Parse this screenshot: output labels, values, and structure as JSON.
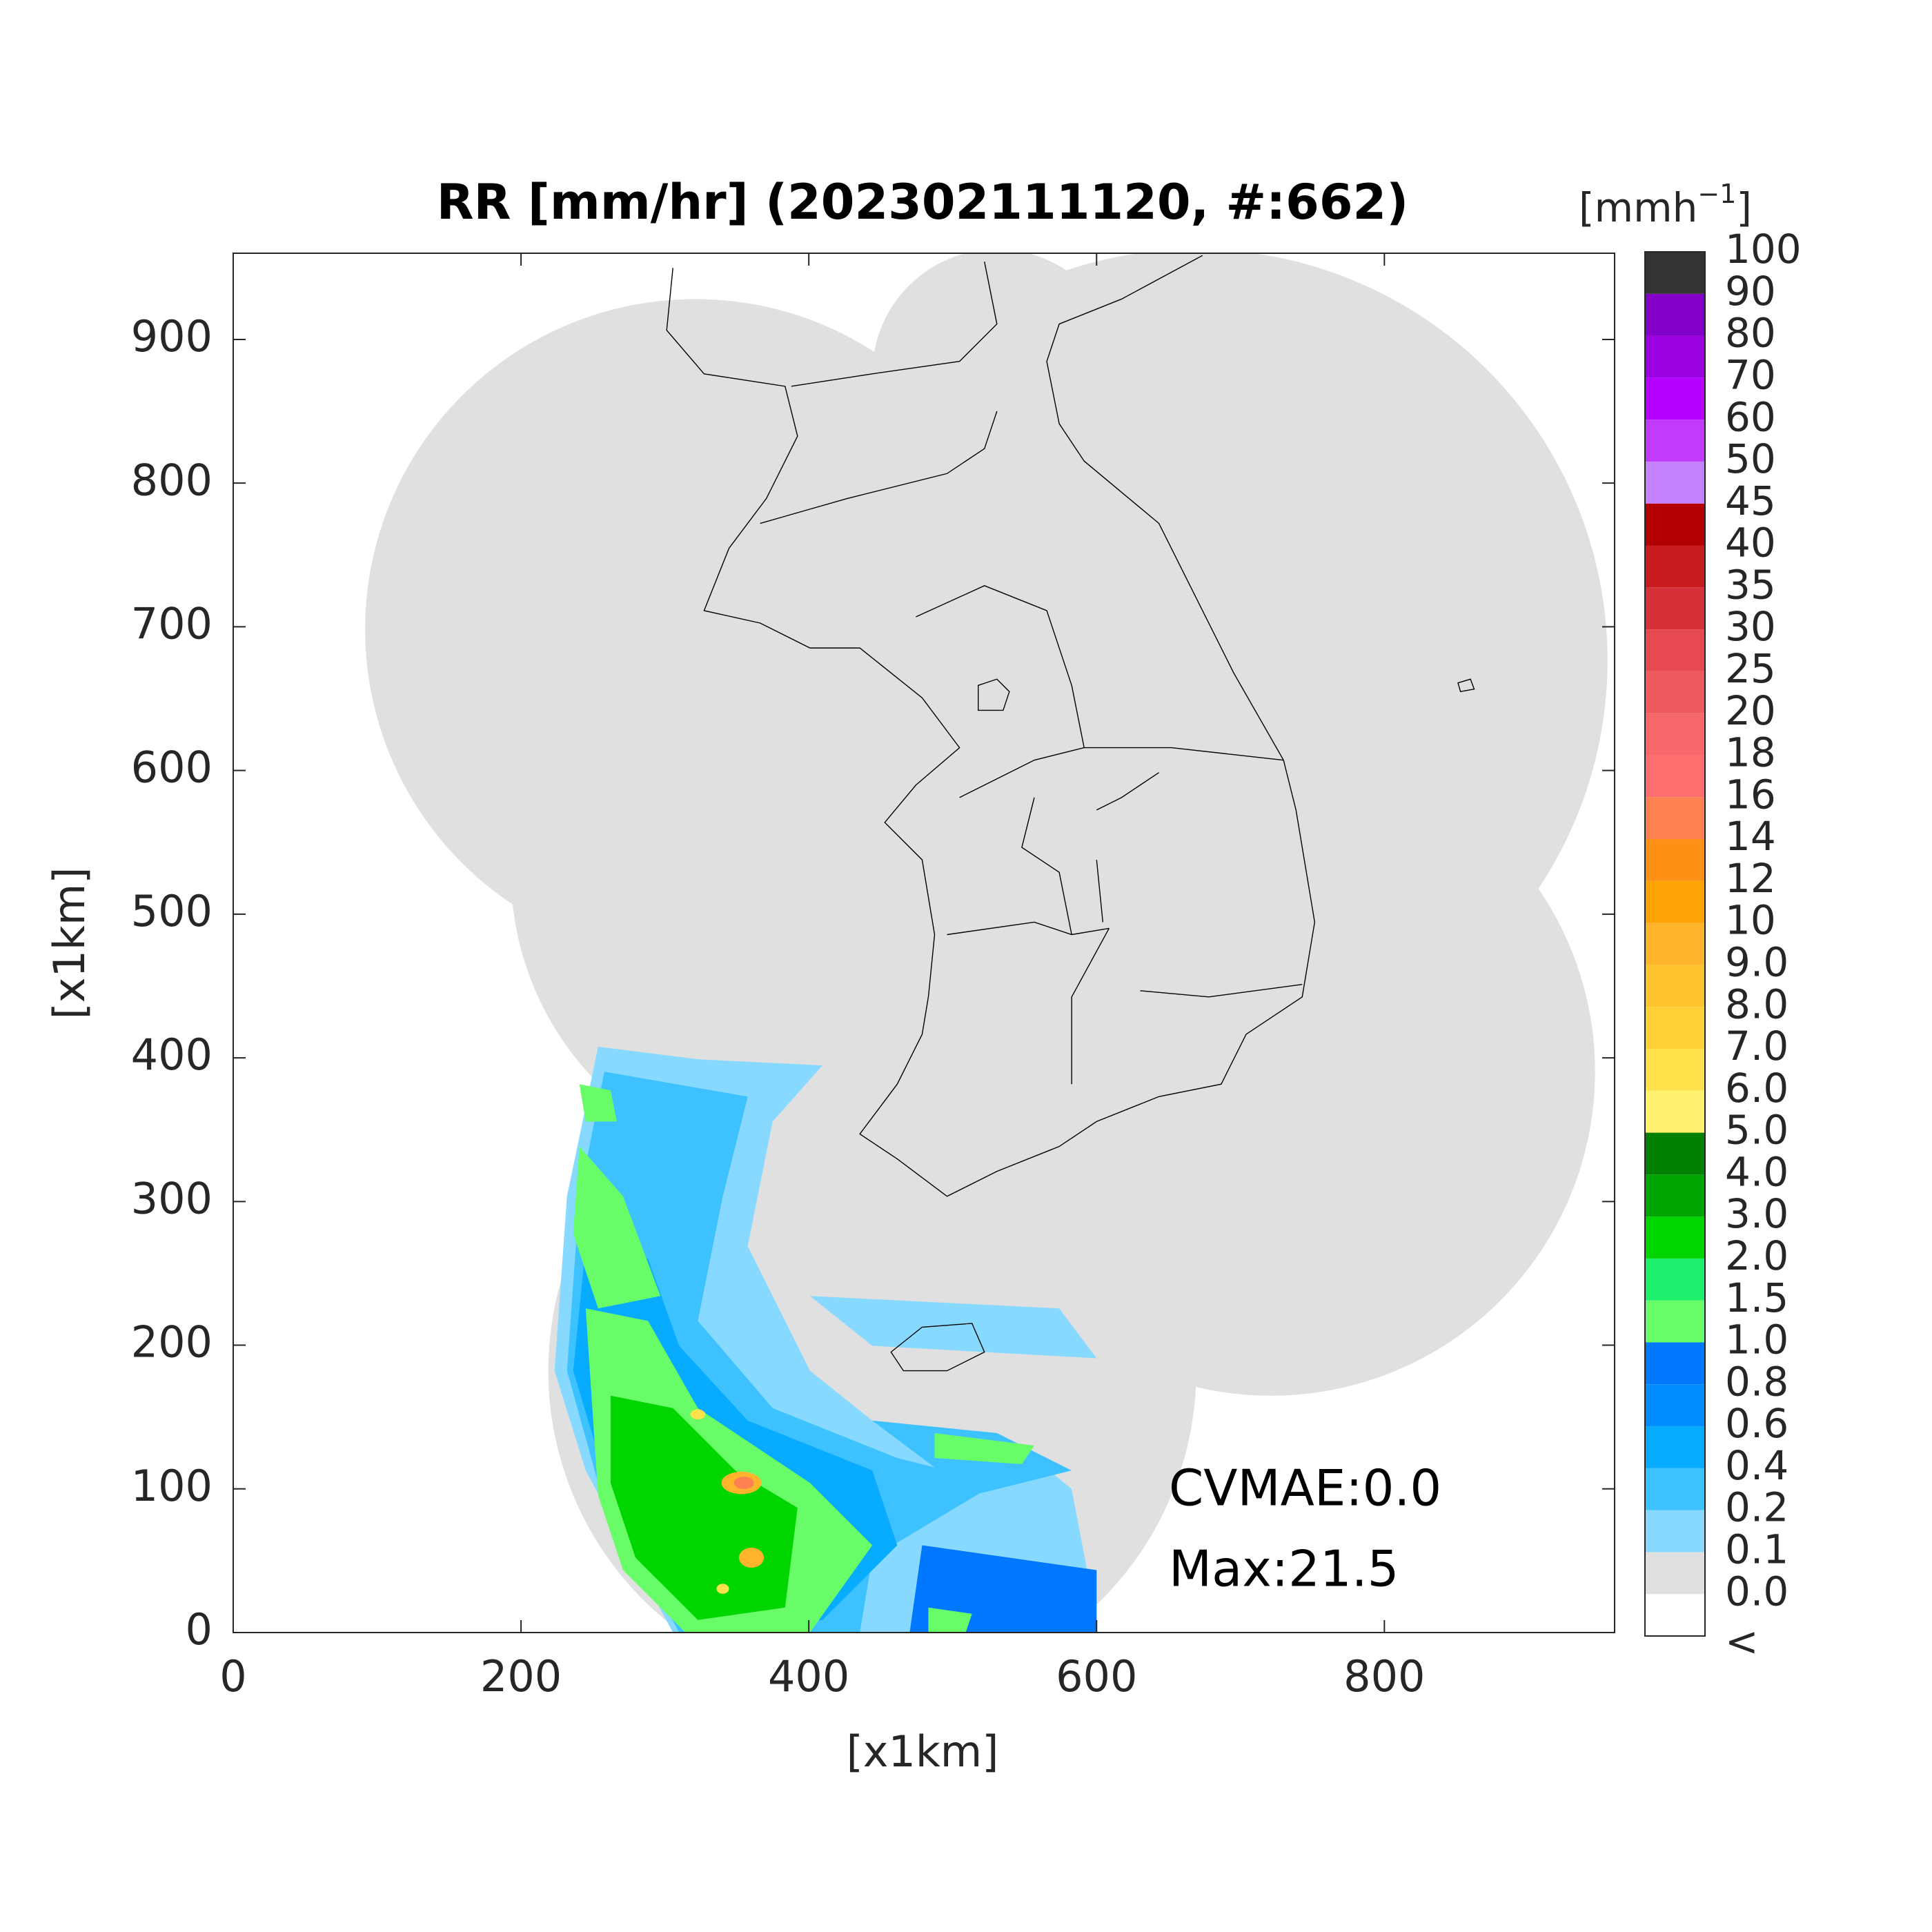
{
  "chart_data": {
    "type": "radar-map",
    "title": "RR [mm/hr] (202302111120, #:662)",
    "x_label": "[x1km]",
    "y_label": "[x1km]",
    "xlim": [
      0,
      960
    ],
    "ylim": [
      0,
      960
    ],
    "xticks": [
      0,
      200,
      400,
      600,
      800
    ],
    "yticks": [
      0,
      100,
      200,
      300,
      400,
      500,
      600,
      700,
      800,
      900
    ],
    "annotations": [
      "CVMAE:0.0",
      "Max:21.5"
    ],
    "colorbar": {
      "unit": [
        "[mmh",
        "−1",
        "]"
      ],
      "labels": [
        "<",
        "0.0",
        "0.1",
        "0.2",
        "0.4",
        "0.6",
        "0.8",
        "1.0",
        "1.5",
        "2.0",
        "3.0",
        "4.0",
        "5.0",
        "6.0",
        "7.0",
        "8.0",
        "9.0",
        "10",
        "12",
        "14",
        "16",
        "18",
        "20",
        "25",
        "30",
        "35",
        "40",
        "45",
        "50",
        "60",
        "70",
        "80",
        "90",
        "100"
      ],
      "colors": [
        "#ffffff",
        "#e0e0e0",
        "#87d9ff",
        "#3ec1ff",
        "#07abff",
        "#008dff",
        "#0077ff",
        "#69fc69",
        "#1ef06e",
        "#00d500",
        "#00a400",
        "#008000",
        "#fff06f",
        "#ffe14b",
        "#ffd137",
        "#ffc32e",
        "#ffb42b",
        "#ffa305",
        "#ff9016",
        "#ff8050",
        "#ff6e6e",
        "#f7686a",
        "#ef5a5e",
        "#e64a50",
        "#d63039",
        "#c71b1f",
        "#b30000",
        "#c583ff",
        "#c13bff",
        "#b300ff",
        "#9a00e0",
        "#8200c7",
        "#333333"
      ]
    }
  }
}
